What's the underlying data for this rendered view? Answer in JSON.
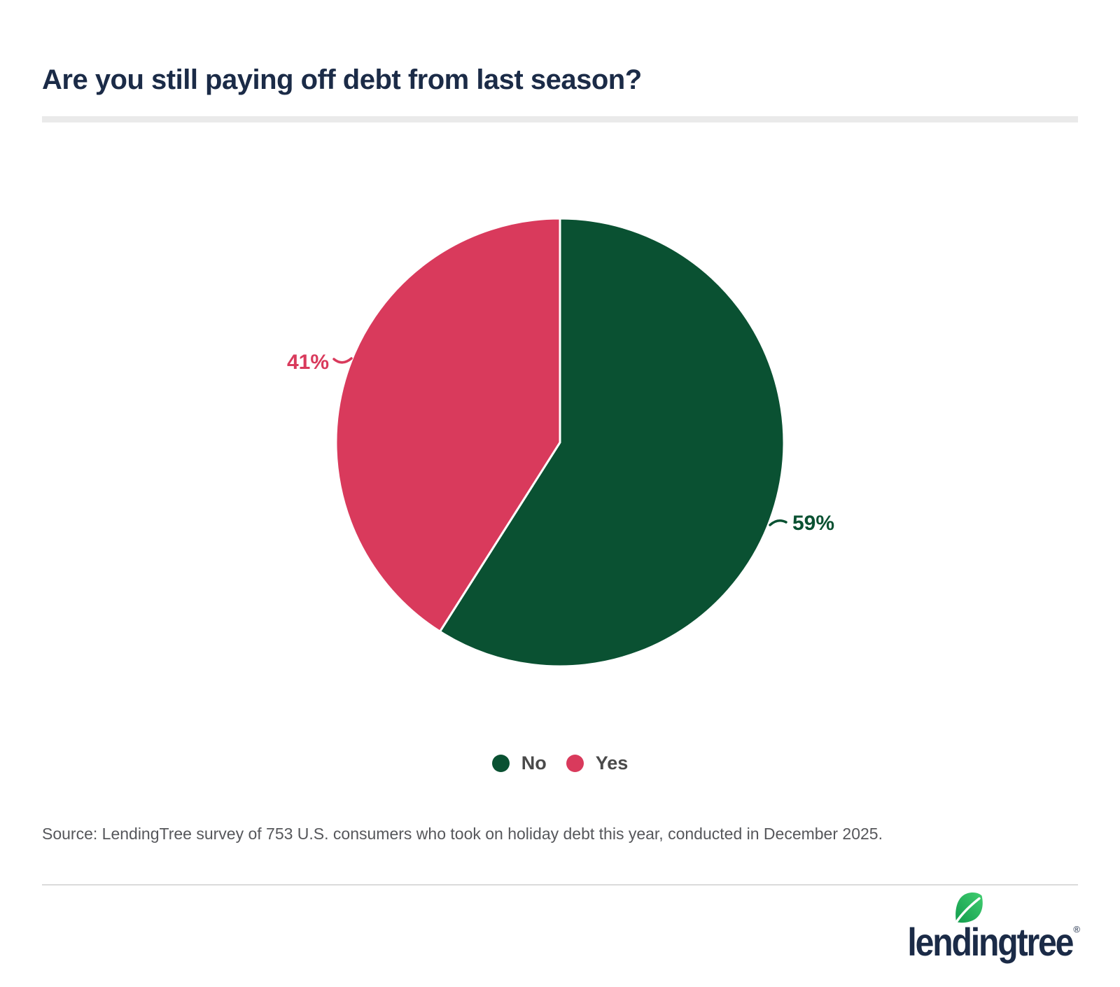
{
  "page": {
    "background": "#FFFFFF"
  },
  "title": {
    "text": "Are you still paying off debt from last season?",
    "color": "#1B2B47"
  },
  "chart_data": {
    "type": "pie",
    "title": "Are you still paying off debt from last season?",
    "labels": [
      "No",
      "Yes"
    ],
    "values": [
      59,
      41
    ],
    "display_values": [
      "59%",
      "41%"
    ],
    "colors": [
      "#0A5132",
      "#D93A5C"
    ],
    "start_angle_deg": 0,
    "direction": "clockwise",
    "slice_stroke": "#FFFFFF",
    "legend_position": "bottom"
  },
  "legend": {
    "items": [
      {
        "label": "No",
        "color": "#0A5132"
      },
      {
        "label": "Yes",
        "color": "#D93A5C"
      }
    ]
  },
  "source": {
    "text": "Source: LendingTree survey of 753 U.S. consumers who took on holiday debt this year, conducted in December 2025."
  },
  "footer": {
    "logo_text": "lendingtree",
    "registered_mark": "®",
    "logo_color": "#1B2B47",
    "leaf_colors": [
      "#129C4D",
      "#41CE70"
    ]
  }
}
